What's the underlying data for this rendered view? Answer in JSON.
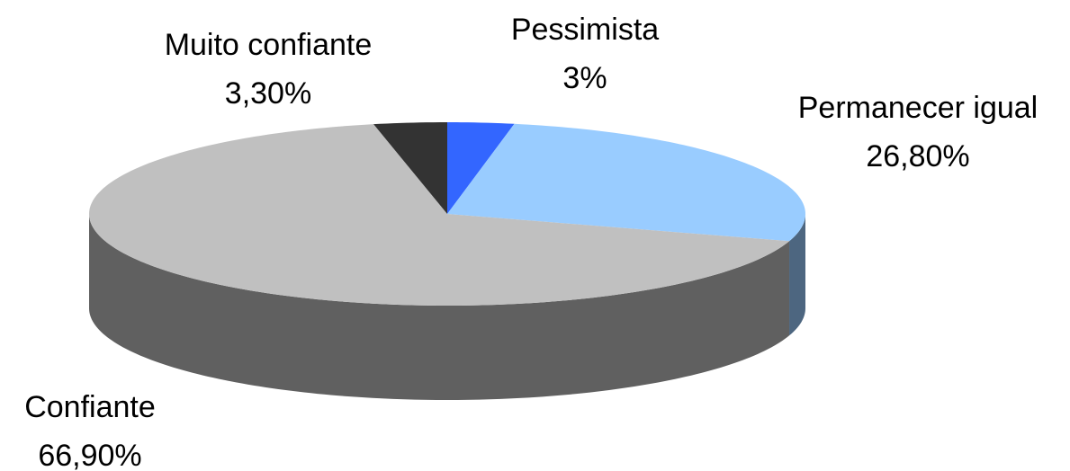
{
  "chart_data": {
    "type": "pie",
    "categories": [
      "Pessimista",
      "Permanecer igual",
      "Confiante",
      "Muito confiante"
    ],
    "values": [
      3,
      26.8,
      66.9,
      3.3
    ],
    "value_labels": [
      "3%",
      "26,80%",
      "66,90%",
      "3,30%"
    ],
    "colors": [
      "#3366ff",
      "#99ccff",
      "#c0c0c0",
      "#333333"
    ]
  }
}
